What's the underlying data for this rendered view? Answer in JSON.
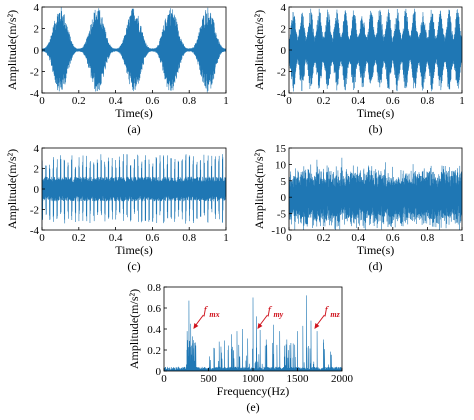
{
  "chart_data": [
    {
      "id": "a",
      "type": "line",
      "panel_label": "(a)",
      "xlabel": "Time(s)",
      "ylabel": "Amplitude(m/s²)",
      "xlim": [
        0,
        1
      ],
      "ylim": [
        -4,
        4
      ],
      "xticks": [
        "0",
        "0.2",
        "0.4",
        "0.6",
        "0.8",
        "1"
      ],
      "yticks": [
        "4",
        "2",
        "0",
        "-2",
        "-4"
      ],
      "color": "#1f77b4",
      "description_values": {
        "peak_amplitude": 4,
        "burst_count": 5,
        "burst_period_s": 0.2
      }
    },
    {
      "id": "b",
      "type": "line",
      "panel_label": "(b)",
      "xlabel": "Time(s)",
      "ylabel": "Amplitude(m/s²)",
      "xlim": [
        0,
        1
      ],
      "ylim": [
        -4,
        4
      ],
      "xticks": [
        "0",
        "0.2",
        "0.4",
        "0.6",
        "0.8",
        "1"
      ],
      "yticks": [
        "4",
        "2",
        "0",
        "-2",
        "-4"
      ],
      "color": "#1f77b4",
      "description_values": {
        "peak_amplitude": 3.9,
        "burst_count": 20
      }
    },
    {
      "id": "c",
      "type": "line",
      "panel_label": "(c)",
      "xlabel": "Time(s)",
      "ylabel": "Amplitude(m/s²)",
      "xlim": [
        0,
        1
      ],
      "ylim": [
        -4,
        4
      ],
      "xticks": [
        "0",
        "0.2",
        "0.4",
        "0.6",
        "0.8",
        "1"
      ],
      "yticks": [
        "4",
        "2",
        "0",
        "-2",
        "-4"
      ],
      "color": "#1f77b4",
      "description_values": {
        "peak_amplitude": 3.4,
        "impulse_count": 50
      }
    },
    {
      "id": "d",
      "type": "line",
      "panel_label": "(d)",
      "xlabel": "Time(s)",
      "ylabel": "Amplitude(m/s²)",
      "xlim": [
        0,
        1
      ],
      "ylim": [
        -10,
        15
      ],
      "xticks": [
        "0",
        "0.2",
        "0.4",
        "0.6",
        "0.8",
        "1"
      ],
      "yticks": [
        "15",
        "10",
        "5",
        "0",
        "-5",
        "-10"
      ],
      "color": "#1f77b4",
      "description_values": {
        "peak_amplitude": 14
      }
    },
    {
      "id": "e",
      "type": "line",
      "panel_label": "(e)",
      "xlabel": "Frequency(Hz)",
      "ylabel": "Amplitude(m/s²)",
      "xlim": [
        0,
        2000
      ],
      "ylim": [
        0,
        0.8
      ],
      "xticks": [
        "0",
        "500",
        "1000",
        "1500",
        "2000"
      ],
      "yticks": [
        "0.8",
        "0.6",
        "0.4",
        "0.2",
        "0"
      ],
      "color": "#1f77b4",
      "peaks": [
        {
          "x": 280,
          "y": 0.67
        },
        {
          "x": 300,
          "y": 0.45
        },
        {
          "x": 260,
          "y": 0.38
        },
        {
          "x": 320,
          "y": 0.33
        },
        {
          "x": 560,
          "y": 0.22
        },
        {
          "x": 620,
          "y": 0.28
        },
        {
          "x": 680,
          "y": 0.29
        },
        {
          "x": 760,
          "y": 0.35
        },
        {
          "x": 820,
          "y": 0.38
        },
        {
          "x": 880,
          "y": 0.4
        },
        {
          "x": 940,
          "y": 0.31
        },
        {
          "x": 1000,
          "y": 0.7
        },
        {
          "x": 1040,
          "y": 0.52
        },
        {
          "x": 1080,
          "y": 0.39
        },
        {
          "x": 1150,
          "y": 0.3
        },
        {
          "x": 1230,
          "y": 0.44
        },
        {
          "x": 1300,
          "y": 0.38
        },
        {
          "x": 1380,
          "y": 0.3
        },
        {
          "x": 1500,
          "y": 0.38
        },
        {
          "x": 1560,
          "y": 0.43
        },
        {
          "x": 1600,
          "y": 0.72
        },
        {
          "x": 1650,
          "y": 0.48
        },
        {
          "x": 1720,
          "y": 0.38
        },
        {
          "x": 1790,
          "y": 0.3
        }
      ],
      "annotations": [
        {
          "label": "f",
          "sub": "mx",
          "x": 330,
          "y": 0.4
        },
        {
          "label": "f",
          "sub": "my",
          "x": 1050,
          "y": 0.4
        },
        {
          "label": "f",
          "sub": "mz",
          "x": 1690,
          "y": 0.4
        }
      ],
      "annotation_color": "#d0141e"
    }
  ]
}
